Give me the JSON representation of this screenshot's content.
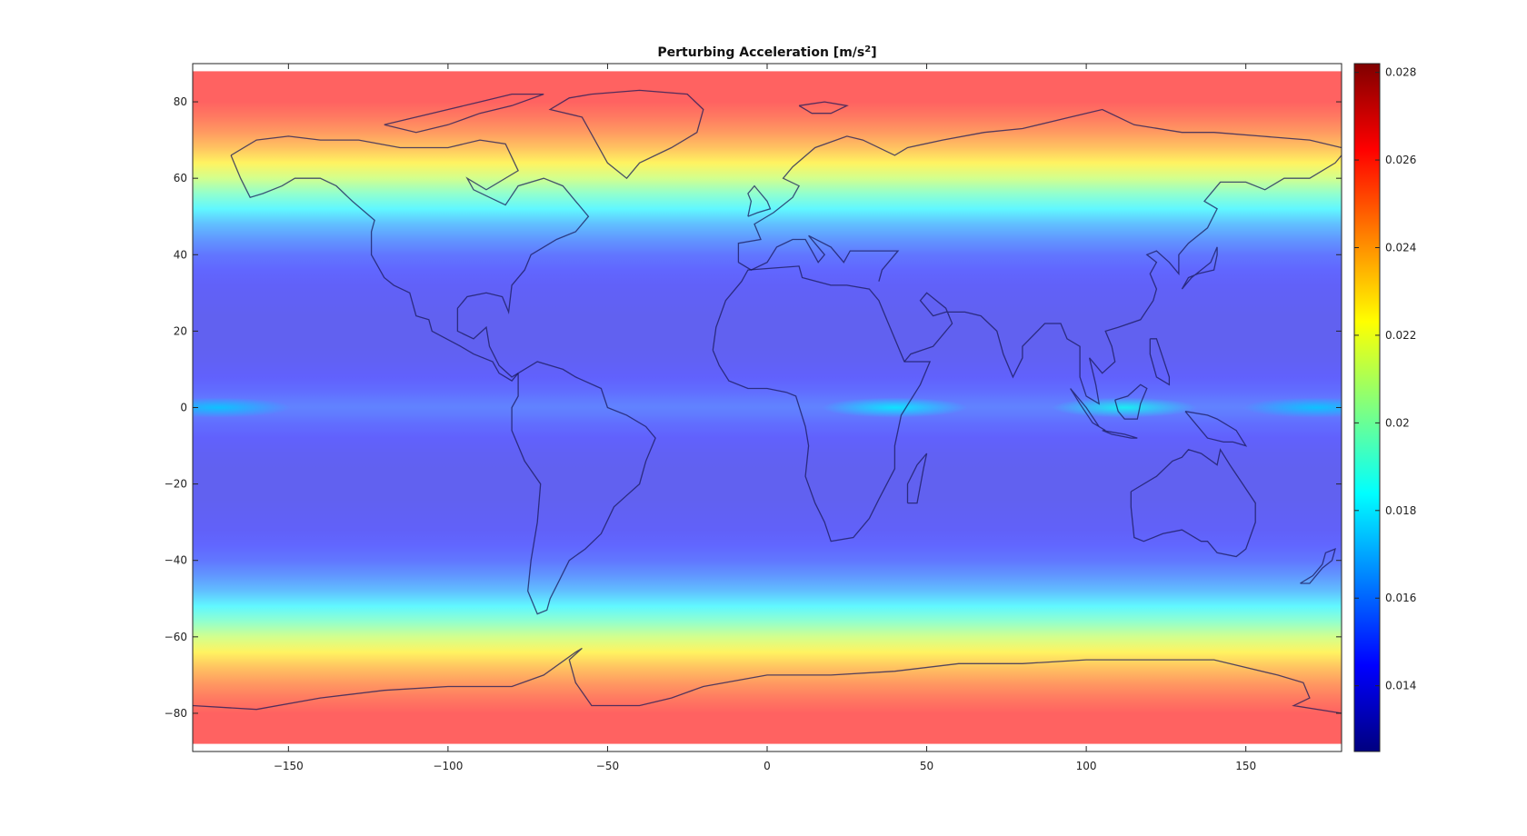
{
  "chart_data": {
    "type": "heatmap",
    "title": "Perturbing Acceleration [m/s",
    "title_exponent": "2",
    "title_suffix": "]",
    "xlim": [
      -180,
      180
    ],
    "ylim": [
      -90,
      90
    ],
    "x_ticks": [
      -150,
      -100,
      -50,
      0,
      50,
      100,
      150
    ],
    "x_tick_labels": [
      "−150",
      "−100",
      "−50",
      "0",
      "50",
      "100",
      "150"
    ],
    "y_ticks": [
      80,
      60,
      40,
      20,
      0,
      -20,
      -40,
      -60,
      -80
    ],
    "y_tick_labels": [
      "80",
      "60",
      "40",
      "20",
      "0",
      "−20",
      "−40",
      "−60",
      "−80"
    ],
    "colorbar": {
      "colormap": "jet",
      "range": [
        0.0125,
        0.0282
      ],
      "ticks": [
        0.014,
        0.016,
        0.018,
        0.02,
        0.022,
        0.024,
        0.026,
        0.028
      ],
      "tick_labels": [
        "0.014",
        "0.016",
        "0.018",
        "0.02",
        "0.022",
        "0.024",
        "0.026",
        "0.028"
      ]
    },
    "latitude_profile": {
      "latitude": [
        88,
        84,
        80,
        76,
        72,
        68,
        64,
        60,
        56,
        52,
        48,
        44,
        40,
        36,
        32,
        28,
        24,
        20,
        16,
        12,
        8,
        4,
        2,
        0,
        -2,
        -4,
        -8,
        -12,
        -16,
        -20,
        -24,
        -28,
        -32,
        -36,
        -40,
        -44,
        -48,
        -52,
        -56,
        -60,
        -64,
        -68,
        -72,
        -76,
        -80,
        -84,
        -88
      ],
      "value": [
        0.0262,
        0.0262,
        0.0262,
        0.0256,
        0.0248,
        0.0238,
        0.0226,
        0.0212,
        0.0196,
        0.0182,
        0.0168,
        0.0158,
        0.015,
        0.0146,
        0.0143,
        0.0142,
        0.0141,
        0.0141,
        0.0141,
        0.0142,
        0.0144,
        0.0148,
        0.0151,
        0.0153,
        0.0151,
        0.0148,
        0.0144,
        0.0142,
        0.0141,
        0.0141,
        0.0141,
        0.0142,
        0.0143,
        0.0146,
        0.015,
        0.0158,
        0.0168,
        0.0182,
        0.0196,
        0.0212,
        0.0226,
        0.0238,
        0.0248,
        0.0256,
        0.0262,
        0.0262,
        0.0262
      ]
    },
    "equatorial_maxima": [
      {
        "lon": -172,
        "lat": 0,
        "value": 0.0176
      },
      {
        "lon": 40,
        "lat": 0,
        "value": 0.0182
      },
      {
        "lon": 112,
        "lat": 0,
        "value": 0.0186
      },
      {
        "lon": 172,
        "lat": 0,
        "value": 0.0176
      }
    ],
    "overlay": "world coastlines",
    "grid": false
  }
}
